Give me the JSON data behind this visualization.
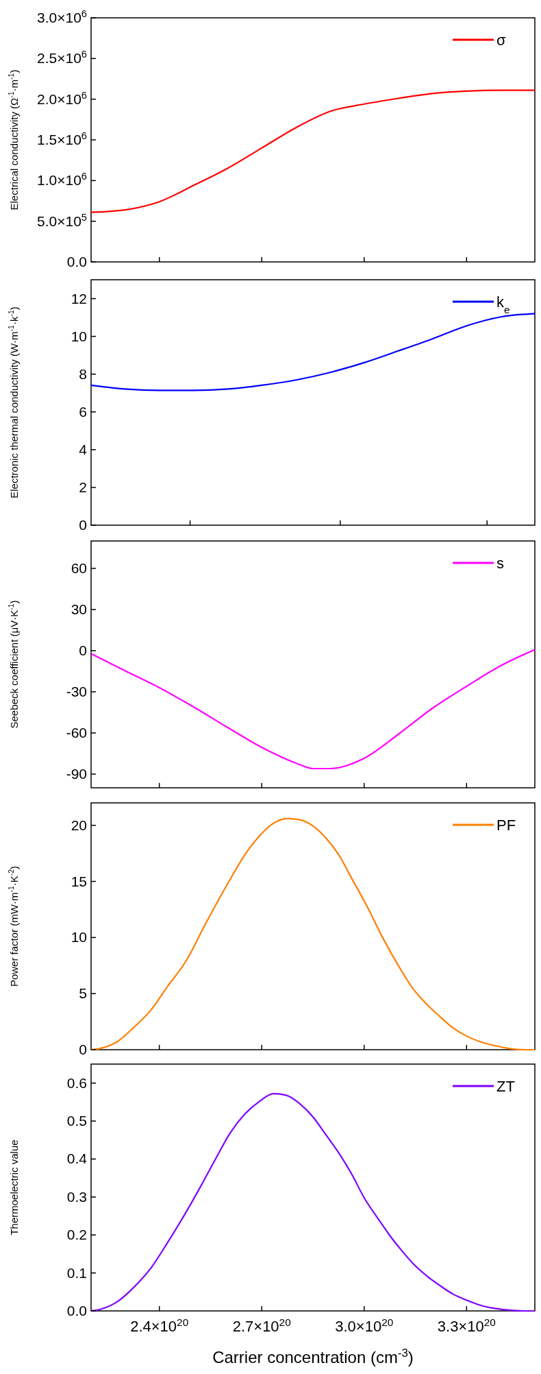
{
  "chart_data": [
    {
      "type": "line",
      "ylabel": "Electrical conductivity (Ω$^{-1}$·m$^{-1}$)",
      "xlim": [
        2.2e+20,
        3.5e+20
      ],
      "xticks": [
        {
          "value": 2.4e+20,
          "label": null
        },
        {
          "value": 2.7e+20,
          "label": null
        },
        {
          "value": 3e+20,
          "label": null
        },
        {
          "value": 3.3e+20,
          "label": null
        }
      ],
      "ylim": [
        0,
        3000000
      ],
      "yticks": [
        {
          "value": 0,
          "label": "0.0"
        },
        {
          "value": 500000,
          "label": "5.0×10$^{5}$"
        },
        {
          "value": 1000000,
          "label": "1.0×10$^{6}$"
        },
        {
          "value": 1500000,
          "label": "1.5×10$^{6}$"
        },
        {
          "value": 2000000,
          "label": "2.0×10$^{6}$"
        },
        {
          "value": 2500000,
          "label": "2.5×10$^{6}$"
        },
        {
          "value": 3000000,
          "label": "3.0×10$^{6}$"
        }
      ],
      "tick_labels": "y",
      "legend": "top right",
      "series": [
        {
          "name": "σ",
          "color": "#ff0000",
          "x": [
            2.2e+20,
            2.3e+20,
            2.4e+20,
            2.5e+20,
            2.6e+20,
            2.7e+20,
            2.8e+20,
            2.9e+20,
            3e+20,
            3.1e+20,
            3.2e+20,
            3.3e+20,
            3.4e+20,
            3.5e+20
          ],
          "values": [
            610000,
            640000,
            740000,
            940000,
            1150000,
            1400000,
            1650000,
            1850000,
            1940000,
            2010000,
            2070000,
            2100000,
            2110000,
            2110000
          ]
        }
      ]
    },
    {
      "type": "line",
      "ylabel": "Electronic thermal conductivity (W·m$^{-1}$·k$^{-1}$)",
      "xlim": [
        2.2e+20,
        3.5e+20
      ],
      "xticks": [
        {
          "value": 2.49e+20,
          "label": null
        },
        {
          "value": 2.93e+20,
          "label": null
        },
        {
          "value": 3.36e+20,
          "label": null
        }
      ],
      "ylim": [
        0,
        13
      ],
      "yticks": [
        0,
        2,
        4,
        6,
        8,
        10,
        12
      ],
      "tick_labels": "y",
      "legend": "top right",
      "series": [
        {
          "name": "k$_{e}$",
          "color": "#0000ff",
          "x": [
            2.2e+20,
            2.3e+20,
            2.4e+20,
            2.5e+20,
            2.6e+20,
            2.7e+20,
            2.8e+20,
            2.9e+20,
            3e+20,
            3.1e+20,
            3.2e+20,
            3.3e+20,
            3.4e+20,
            3.5e+20
          ],
          "values": [
            7.41,
            7.21,
            7.14,
            7.14,
            7.21,
            7.41,
            7.69,
            8.09,
            8.61,
            9.23,
            9.87,
            10.56,
            11.03,
            11.21
          ]
        }
      ]
    },
    {
      "type": "line",
      "ylabel": "Seebeck coefficient (μV·K$^{-1}$)",
      "xlim": [
        2.2e+20,
        3.5e+20
      ],
      "xticks": [
        {
          "value": 2.4e+20,
          "label": null
        },
        {
          "value": 2.7e+20,
          "label": null
        },
        {
          "value": 3e+20,
          "label": null
        },
        {
          "value": 3.3e+20,
          "label": null
        }
      ],
      "ylim": [
        -100,
        80
      ],
      "yticks": [
        -90,
        -60,
        -30,
        0,
        30,
        60
      ],
      "tick_labels": "y",
      "legend": "top right",
      "series": [
        {
          "name": "s",
          "color": "#ff00ff",
          "x": [
            2.2e+20,
            2.3e+20,
            2.4e+20,
            2.5e+20,
            2.6e+20,
            2.7e+20,
            2.8e+20,
            2.85e+20,
            2.9e+20,
            3e+20,
            3.1e+20,
            3.2e+20,
            3.3e+20,
            3.4e+20,
            3.5e+20
          ],
          "values": [
            -2.2,
            -14.8,
            -27,
            -41,
            -56,
            -70.5,
            -82,
            -86,
            -86,
            -78.5,
            -61,
            -42,
            -26,
            -11,
            0.8
          ]
        }
      ]
    },
    {
      "type": "line",
      "ylabel": "Power factor (mW·m$^{-1}$·K$^{-2}$)",
      "xlim": [
        2.2e+20,
        3.5e+20
      ],
      "xticks": [
        {
          "value": 2.4e+20,
          "label": null
        },
        {
          "value": 2.7e+20,
          "label": null
        },
        {
          "value": 3e+20,
          "label": null
        },
        {
          "value": 3.3e+20,
          "label": null
        }
      ],
      "ylim": [
        0,
        22
      ],
      "yticks": [
        0,
        5,
        10,
        15,
        20
      ],
      "tick_labels": "y",
      "legend": "top right",
      "series": [
        {
          "name": "PF",
          "color": "#ff7f00",
          "x": [
            2.2e+20,
            2.225e+20,
            2.276e+20,
            2.324e+20,
            2.377e+20,
            2.423e+20,
            2.478e+20,
            2.535e+20,
            2.604e+20,
            2.649e+20,
            2.692e+20,
            2.73e+20,
            2.776e+20,
            2.811e+20,
            2.852e+20,
            2.887e+20,
            2.927e+20,
            2.963e+20,
            3.008e+20,
            3.054e+20,
            3.106e+20,
            3.144e+20,
            3.185e+20,
            3.22e+20,
            3.258e+20,
            3.301e+20,
            3.341e+20,
            3.384e+20,
            3.427e+20,
            3.468e+20,
            3.5e+20
          ],
          "values": [
            0,
            0.1,
            0.7,
            1.95,
            3.6,
            5.6,
            7.9,
            11.2,
            15,
            17.3,
            19,
            20.1,
            20.6,
            20.5,
            19.9,
            18.9,
            17.3,
            15.3,
            12.8,
            10,
            7.2,
            5.4,
            4,
            3,
            2,
            1.2,
            0.7,
            0.35,
            0.1,
            0,
            0
          ]
        }
      ]
    },
    {
      "type": "line",
      "ylabel": "Thermoelectric value",
      "xlabel": "Carrier concentration (cm$^{-3}$)",
      "xlim": [
        2.2e+20,
        3.5e+20
      ],
      "xticks": [
        {
          "value": 2.4e+20,
          "label": "2.4×10$^{20}$"
        },
        {
          "value": 2.7e+20,
          "label": "2.7×10$^{20}$"
        },
        {
          "value": 3e+20,
          "label": "3.0×10$^{20}$"
        },
        {
          "value": 3.3e+20,
          "label": "3.3×10$^{20}$"
        }
      ],
      "ylim": [
        0,
        0.65
      ],
      "yticks": [
        {
          "value": 0,
          "label": "0.0"
        },
        0.1,
        0.2,
        0.3,
        0.4,
        0.5,
        0.6
      ],
      "legend": "top right",
      "series": [
        {
          "name": "ZT",
          "color": "#7f00ff",
          "x": [
            2.2e+20,
            2.23e+20,
            2.278e+20,
            2.326e+20,
            2.377e+20,
            2.424e+20,
            2.471e+20,
            2.518e+20,
            2.564e+20,
            2.607e+20,
            2.65e+20,
            2.692e+20,
            2.735e+20,
            2.771e+20,
            2.811e+20,
            2.85e+20,
            2.887e+20,
            2.927e+20,
            2.963e+20,
            3e+20,
            3.043e+20,
            3.074e+20,
            3.109e+20,
            3.144e+20,
            3.185e+20,
            3.22e+20,
            3.261e+20,
            3.301e+20,
            3.341e+20,
            3.387e+20,
            3.427e+20,
            3.468e+20,
            3.5e+20
          ],
          "values": [
            0,
            0.005,
            0.025,
            0.063,
            0.115,
            0.18,
            0.249,
            0.323,
            0.399,
            0.468,
            0.518,
            0.551,
            0.572,
            0.568,
            0.546,
            0.511,
            0.465,
            0.414,
            0.361,
            0.298,
            0.24,
            0.2,
            0.16,
            0.124,
            0.091,
            0.068,
            0.044,
            0.028,
            0.015,
            0.006,
            0.002,
            0,
            0
          ]
        }
      ]
    }
  ]
}
